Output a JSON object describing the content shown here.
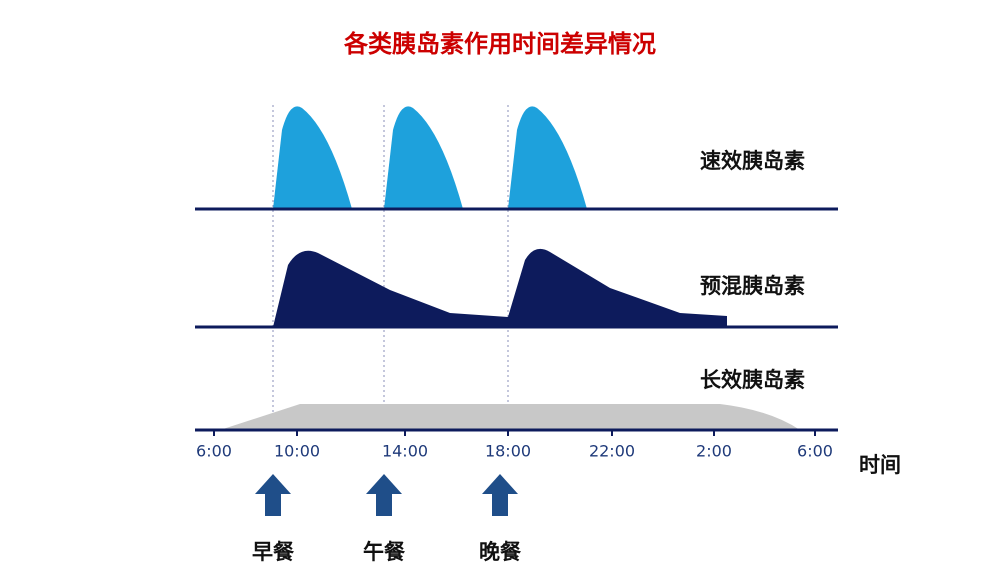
{
  "title": "各类胰岛素作用时间差异情况",
  "rows": [
    "速效胰岛素",
    "预混胰岛素",
    "长效胰岛素"
  ],
  "x_axis": {
    "ticks": [
      "6:00",
      "10:00",
      "14:00",
      "18:00",
      "22:00",
      "2:00",
      "6:00"
    ],
    "label": "时间"
  },
  "meals": [
    "早餐",
    "午餐",
    "晚餐"
  ]
}
